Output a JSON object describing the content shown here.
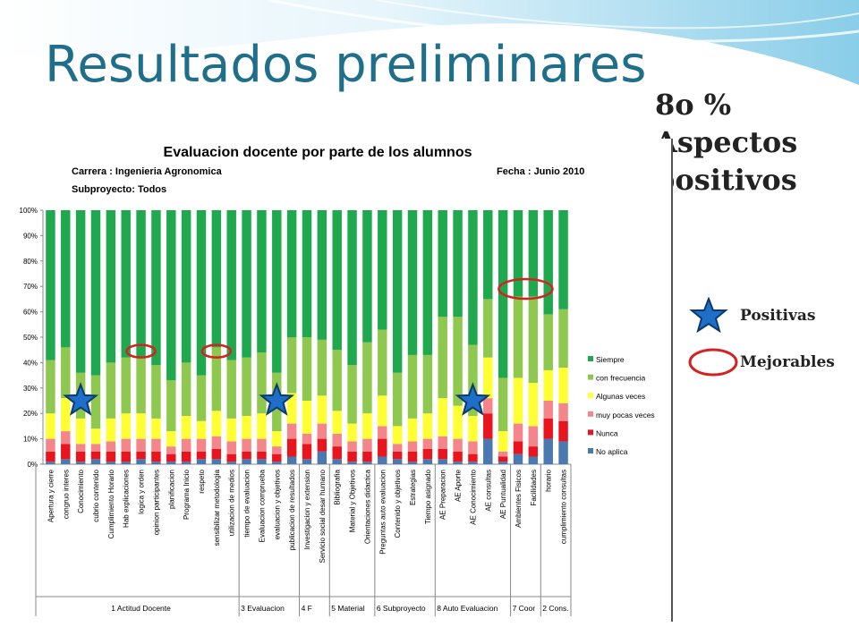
{
  "slide": {
    "title": "Resultados preliminares",
    "side_note": [
      "8o %",
      "Aspectos",
      "positivos"
    ],
    "legend_positive": "Positivas",
    "legend_improve": "Mejorables"
  },
  "colors": {
    "title": "#1f6f8b",
    "siempre": "#1fa84e",
    "con_frecuencia": "#8fc84f",
    "algunas_veces": "#ffff33",
    "muy_pocas_veces": "#f4858a",
    "nunca": "#e8141e",
    "no_aplica": "#4a78b0",
    "star_fill": "#1f6fc8",
    "circle": "#d42222"
  },
  "chart_data": {
    "type": "bar",
    "stacked": true,
    "percent": true,
    "title": "Evaluacion  docente por parte de los alumnos",
    "subtitle_left_1": "Carrera : Ingenieria Agronomica",
    "subtitle_right": "Fecha : Junio 2010",
    "subtitle_left_2": "Subproyecto:  Todos",
    "ylim": [
      0,
      100
    ],
    "yticks": [
      "0%",
      "10%",
      "20%",
      "30%",
      "40%",
      "50%",
      "60%",
      "70%",
      "80%",
      "90%",
      "100%"
    ],
    "grid": false,
    "legend_position": "right",
    "categories": [
      "Apertura y cierre",
      "congruo interes",
      "Conocimiento",
      "cubrio contenido",
      "Cumplimiento Horario",
      "Hab explicaciones",
      "logica y orden",
      "opinion participantes",
      "planificacion",
      "Programa Inicio",
      "respeto",
      "sensibilizar metodologia",
      "utilizacion de medios",
      "tiempo de evaluacion",
      "Evaluacion  comprueba",
      "evaluacion y objetivos",
      "publicacion de resultados",
      "Investigacion y extension",
      "Servicio social desar humano",
      "Bibliografia",
      "Material y Objetivos",
      "Orientaciones didactica",
      "Preguntas auto evaluacion",
      "Contenido y objetivos",
      "Estrategias",
      "Tiempo asignado",
      "AE Preparacion",
      "AE Aporte",
      "AE Conocimiento",
      "AE consultas",
      "AE Puntualidad",
      "Ambientes Fisicos",
      "Facilidades",
      "horario",
      "cumplimiento consultas"
    ],
    "groups": [
      {
        "label": "1 Actitud Docente",
        "count": 13
      },
      {
        "label": "3 Evaluacion",
        "count": 4
      },
      {
        "label": "4 F",
        "count": 2
      },
      {
        "label": "5 Material",
        "count": 3
      },
      {
        "label": "6 Subproyecto",
        "count": 4
      },
      {
        "label": "8 Auto Evaluacion",
        "count": 5
      },
      {
        "label": "7 Coor",
        "count": 2
      },
      {
        "label": "2 Cons.",
        "count": 2
      }
    ],
    "series": [
      {
        "name": "No aplica",
        "color_key": "no_aplica",
        "values": [
          1,
          2,
          1,
          2,
          1,
          1,
          2,
          1,
          1,
          1,
          2,
          2,
          1,
          2,
          2,
          1,
          3,
          2,
          5,
          2,
          1,
          1,
          3,
          2,
          1,
          2,
          2,
          1,
          1,
          10,
          1,
          4,
          3,
          10,
          9
        ]
      },
      {
        "name": "Nunca",
        "color_key": "nunca",
        "values": [
          4,
          6,
          4,
          3,
          4,
          4,
          3,
          4,
          3,
          4,
          3,
          4,
          3,
          3,
          3,
          3,
          7,
          6,
          5,
          5,
          4,
          4,
          7,
          3,
          4,
          4,
          4,
          4,
          3,
          10,
          2,
          5,
          4,
          8,
          8
        ]
      },
      {
        "name": "muy pocas veces",
        "color_key": "muy_pocas_veces",
        "values": [
          5,
          5,
          3,
          3,
          4,
          5,
          5,
          5,
          3,
          5,
          5,
          5,
          5,
          5,
          5,
          3,
          6,
          4,
          6,
          5,
          4,
          5,
          5,
          3,
          4,
          4,
          5,
          5,
          5,
          6,
          2,
          7,
          8,
          7,
          7
        ]
      },
      {
        "name": "Algunas veces",
        "color_key": "algunas_veces",
        "values": [
          10,
          13,
          10,
          6,
          9,
          10,
          10,
          8,
          6,
          9,
          7,
          10,
          9,
          9,
          10,
          6,
          12,
          13,
          11,
          9,
          7,
          10,
          12,
          7,
          9,
          10,
          15,
          13,
          10,
          16,
          8,
          18,
          17,
          12,
          14
        ]
      },
      {
        "name": "con frecuencia",
        "color_key": "con_frecuencia",
        "values": [
          21,
          20,
          18,
          21,
          22,
          22,
          22,
          21,
          20,
          21,
          18,
          25,
          23,
          23,
          24,
          23,
          22,
          25,
          22,
          24,
          23,
          28,
          26,
          21,
          25,
          23,
          32,
          35,
          28,
          23,
          21,
          32,
          34,
          22,
          23
        ]
      },
      {
        "name": "Siempre",
        "color_key": "siempre",
        "values": [
          59,
          54,
          64,
          65,
          60,
          58,
          58,
          61,
          67,
          60,
          65,
          54,
          59,
          58,
          56,
          64,
          50,
          50,
          51,
          55,
          61,
          52,
          47,
          64,
          57,
          57,
          42,
          42,
          53,
          35,
          66,
          34,
          34,
          41,
          39
        ]
      }
    ],
    "annotations": {
      "stars_at": [
        2,
        15,
        28
      ],
      "circles_at": [
        6,
        11
      ],
      "circle_pair_at": [
        31,
        32
      ]
    }
  }
}
